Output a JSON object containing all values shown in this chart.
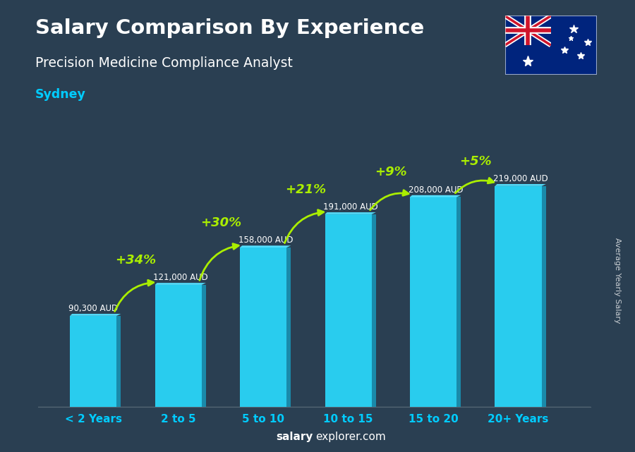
{
  "title": "Salary Comparison By Experience",
  "subtitle": "Precision Medicine Compliance Analyst",
  "city": "Sydney",
  "categories": [
    "< 2 Years",
    "2 to 5",
    "5 to 10",
    "10 to 15",
    "15 to 20",
    "20+ Years"
  ],
  "values": [
    90300,
    121000,
    158000,
    191000,
    208000,
    219000
  ],
  "labels": [
    "90,300 AUD",
    "121,000 AUD",
    "158,000 AUD",
    "191,000 AUD",
    "208,000 AUD",
    "219,000 AUD"
  ],
  "pct_changes": [
    "+34%",
    "+30%",
    "+21%",
    "+9%",
    "+5%"
  ],
  "bar_color_face": "#29ccee",
  "bar_color_side": "#1a8aaa",
  "bar_color_top": "#55e0ff",
  "background_color": "#2a3f52",
  "title_color": "#ffffff",
  "subtitle_color": "#ffffff",
  "city_color": "#00ccff",
  "label_color": "#ffffff",
  "pct_color": "#aaee00",
  "arrow_color": "#aaee00",
  "watermark_bold": "salary",
  "watermark_normal": "explorer.com",
  "ylabel": "Average Yearly Salary",
  "ylim": [
    0,
    260000
  ],
  "bar_width": 0.55
}
